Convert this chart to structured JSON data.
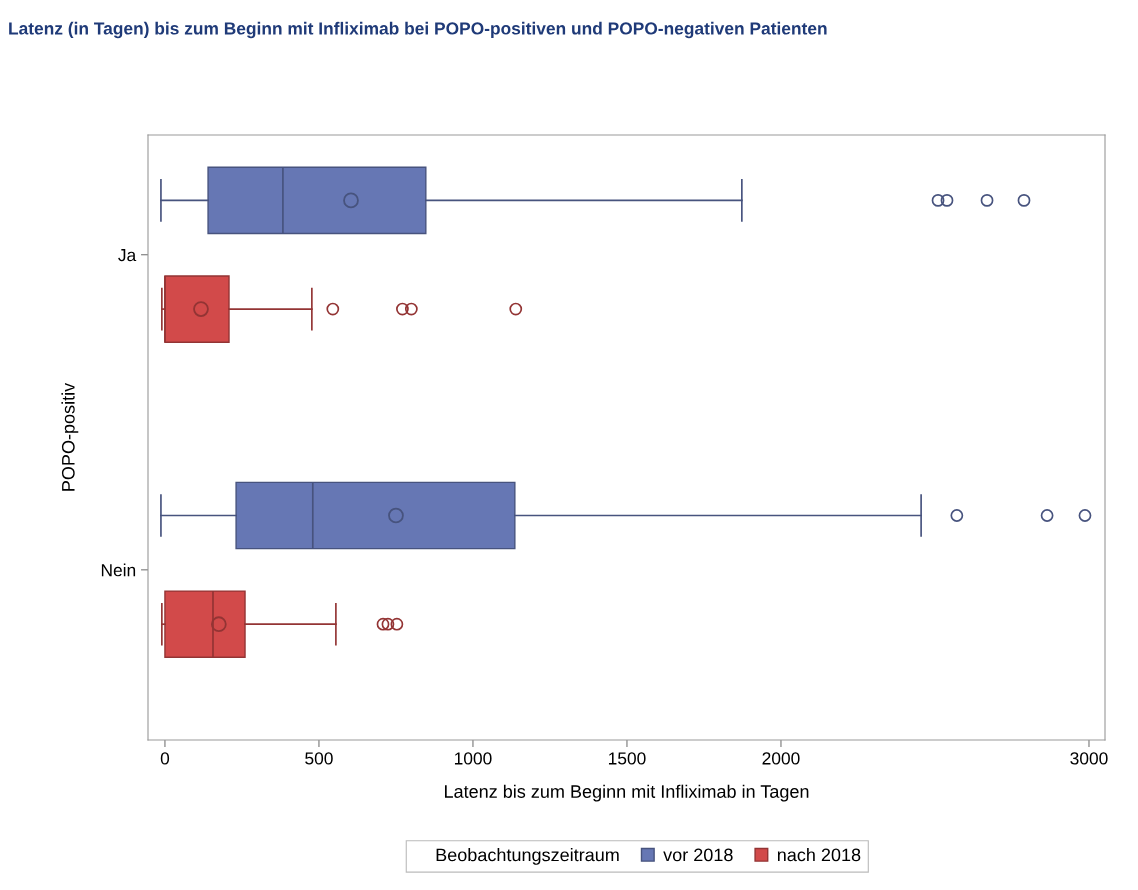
{
  "chart_data": {
    "type": "box",
    "orientation": "horizontal",
    "title": "Latenz (in Tagen) bis zum Beginn mit Infliximab bei POPO-positiven und POPO-negativen Patienten",
    "xlabel": "Latenz bis zum Beginn mit Infliximab in Tagen",
    "ylabel": "POPO-positiv",
    "legend_title": "Beobachtungszeitraum",
    "categories": [
      "Ja",
      "Nein"
    ],
    "series": [
      {
        "name": "vor 2018",
        "color": "#6677b4",
        "boxes": [
          {
            "low": -13,
            "q1": 140,
            "median": 383,
            "q3": 847,
            "high": 1873,
            "mean": 604,
            "outliers": [
              2510,
              2539,
              2669,
              2789
            ]
          },
          {
            "low": -13,
            "q1": 231,
            "median": 480,
            "q3": 1136,
            "high": 2455,
            "mean": 750,
            "outliers": [
              2571,
              2864,
              2987
            ]
          }
        ]
      },
      {
        "name": "nach 2018",
        "color": "#d24a4a",
        "boxes": [
          {
            "low": -10,
            "q1": 0,
            "median": 0,
            "q3": 208,
            "high": 477,
            "mean": 117,
            "outliers": [
              545,
              771,
              800,
              1139
            ]
          },
          {
            "low": -10,
            "q1": 0,
            "median": 156,
            "q3": 260,
            "high": 555,
            "mean": 175,
            "outliers": [
              708,
              724,
              753
            ]
          }
        ]
      }
    ],
    "xlim": [
      -55,
      3052
    ],
    "xticks": [
      0,
      500,
      1000,
      1500,
      2000,
      3000
    ],
    "grid": false,
    "legend": "bottom",
    "marker": "circle"
  }
}
